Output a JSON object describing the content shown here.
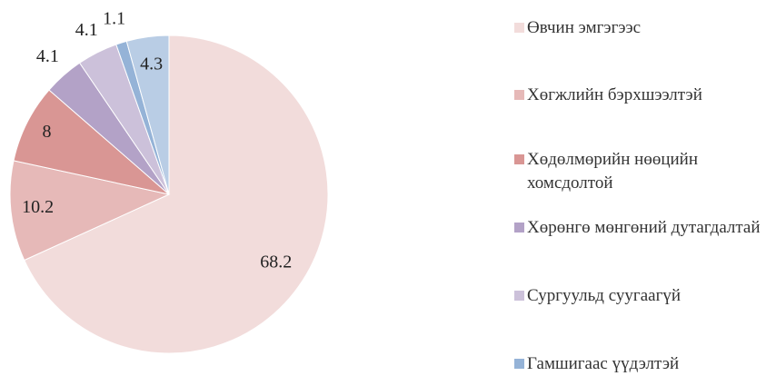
{
  "chart_data": {
    "type": "pie",
    "categories": [
      "Өвчин эмгэгээс",
      "Хөгжлийн бэрхшээлтэй",
      "Хөдөлмөрийн нөөцийн хомсдолтой",
      "Хөрөнгө мөнгөний дутагдалтай",
      "Сургуульд суугаагүй",
      "Гамшигаас үүдэлтэй",
      null
    ],
    "values": [
      68.2,
      10.2,
      8,
      4.1,
      4.1,
      1.1,
      4.3
    ],
    "colors": [
      "#f2dcdb",
      "#e6b9b8",
      "#d99694",
      "#b3a2c7",
      "#ccc1da",
      "#95b3d7",
      "#b9cde5"
    ],
    "legend": "right"
  }
}
